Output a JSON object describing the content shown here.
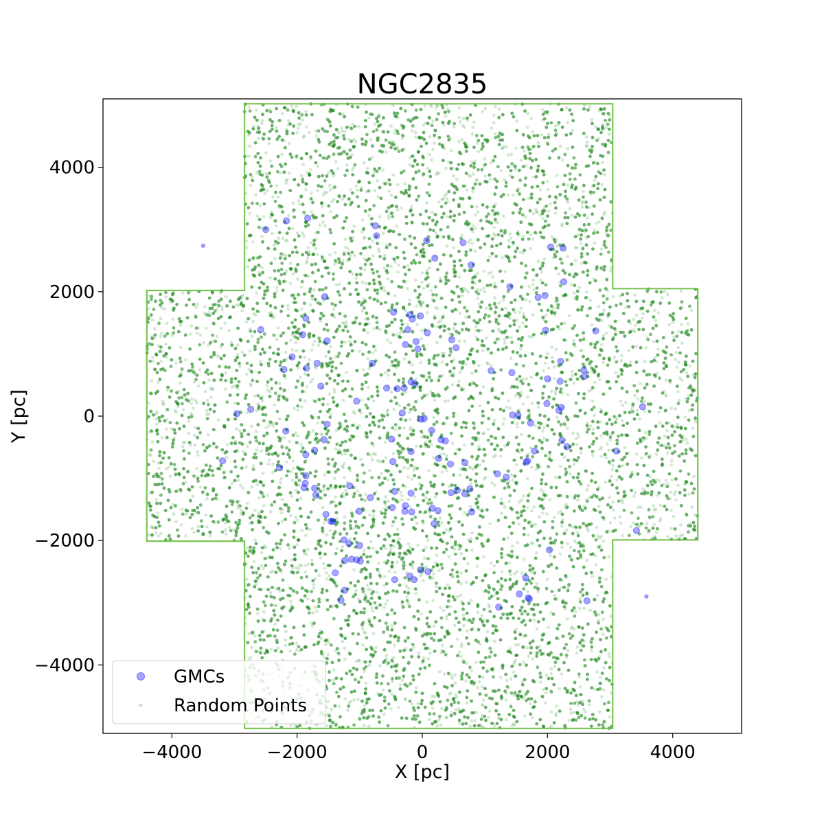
{
  "chart_data": {
    "type": "scatter",
    "title": "NGC2835",
    "xlabel": "X [pc]",
    "ylabel": "Y [pc]",
    "xlim": [
      -5100,
      5100
    ],
    "ylim": [
      -5100,
      5100
    ],
    "xticks": [
      -4000,
      -2000,
      0,
      2000,
      4000
    ],
    "yticks": [
      -4000,
      -2000,
      0,
      2000,
      4000
    ],
    "xtick_labels": [
      "−4000",
      "−2000",
      "0",
      "2000",
      "4000"
    ],
    "ytick_labels": [
      "−4000",
      "−2000",
      "0",
      "2000",
      "4000"
    ],
    "grid": false,
    "legend_position": "lower-left",
    "colors": {
      "gmc": "#0000ff",
      "random": "#228b22",
      "edge": "#6abf40"
    },
    "random_region": {
      "description_polygon": [
        [
          -2840,
          5020
        ],
        [
          3040,
          5020
        ],
        [
          3040,
          2050
        ],
        [
          4400,
          2050
        ],
        [
          4400,
          -1990
        ],
        [
          3040,
          -1990
        ],
        [
          3040,
          -5020
        ],
        [
          -2840,
          -5020
        ],
        [
          -2840,
          -2010
        ],
        [
          -4400,
          -2010
        ],
        [
          -4400,
          2020
        ],
        [
          -2840,
          2020
        ]
      ],
      "approx_point_count": 22000
    },
    "series": [
      {
        "name": "GMCs",
        "marker": "circle",
        "points": [
          [
            -3500,
            2740
          ],
          [
            -2500,
            3000
          ],
          [
            -2170,
            3140
          ],
          [
            -1830,
            3180
          ],
          [
            -750,
            3060
          ],
          [
            -730,
            2900
          ],
          [
            70,
            2820
          ],
          [
            650,
            2790
          ],
          [
            780,
            2430
          ],
          [
            200,
            2540
          ],
          [
            1400,
            2080
          ],
          [
            2050,
            2720
          ],
          [
            2250,
            2700
          ],
          [
            2260,
            2160
          ],
          [
            1850,
            1910
          ],
          [
            1960,
            1940
          ],
          [
            2770,
            1370
          ],
          [
            1970,
            1380
          ],
          [
            2210,
            880
          ],
          [
            2580,
            740
          ],
          [
            2590,
            640
          ],
          [
            2000,
            600
          ],
          [
            2200,
            560
          ],
          [
            1100,
            730
          ],
          [
            1430,
            700
          ],
          [
            3520,
            150
          ],
          [
            1990,
            200
          ],
          [
            2180,
            90
          ],
          [
            2220,
            140
          ],
          [
            1440,
            20
          ],
          [
            1530,
            10
          ],
          [
            1730,
            -110
          ],
          [
            2230,
            -390
          ],
          [
            2310,
            -490
          ],
          [
            3100,
            -560
          ],
          [
            1790,
            -560
          ],
          [
            1680,
            -720
          ],
          [
            1660,
            -740
          ],
          [
            1200,
            -930
          ],
          [
            1340,
            -980
          ],
          [
            790,
            -1540
          ],
          [
            680,
            -1250
          ],
          [
            760,
            -1170
          ],
          [
            560,
            -1190
          ],
          [
            460,
            -1230
          ],
          [
            680,
            -750
          ],
          [
            450,
            -770
          ],
          [
            300,
            -380
          ],
          [
            370,
            -400
          ],
          [
            150,
            -230
          ],
          [
            30,
            -40
          ],
          [
            -20,
            -50
          ],
          [
            -320,
            50
          ],
          [
            -490,
            -370
          ],
          [
            -470,
            -730
          ],
          [
            -180,
            -570
          ],
          [
            -440,
            -1210
          ],
          [
            -270,
            -1440
          ],
          [
            -280,
            -1530
          ],
          [
            -480,
            -1470
          ],
          [
            -180,
            -1240
          ],
          [
            -170,
            -1540
          ],
          [
            160,
            -1480
          ],
          [
            250,
            -1520
          ],
          [
            190,
            -1730
          ],
          [
            260,
            -680
          ],
          [
            -1050,
            240
          ],
          [
            -570,
            450
          ],
          [
            -400,
            440
          ],
          [
            -290,
            450
          ],
          [
            -180,
            550
          ],
          [
            -120,
            520
          ],
          [
            -270,
            1150
          ],
          [
            -230,
            1390
          ],
          [
            -200,
            1630
          ],
          [
            -160,
            1560
          ],
          [
            -100,
            1200
          ],
          [
            -70,
            1080
          ],
          [
            -30,
            1610
          ],
          [
            -460,
            1670
          ],
          [
            80,
            1340
          ],
          [
            470,
            1230
          ],
          [
            540,
            1100
          ],
          [
            -800,
            850
          ],
          [
            -1560,
            1920
          ],
          [
            -1860,
            1570
          ],
          [
            -1910,
            1310
          ],
          [
            -1520,
            1210
          ],
          [
            -1680,
            850
          ],
          [
            -1850,
            770
          ],
          [
            -2580,
            1390
          ],
          [
            -2080,
            950
          ],
          [
            -2210,
            750
          ],
          [
            -1620,
            480
          ],
          [
            -1520,
            -130
          ],
          [
            -1570,
            -380
          ],
          [
            -1720,
            -550
          ],
          [
            -1860,
            -620
          ],
          [
            -2740,
            110
          ],
          [
            -2960,
            40
          ],
          [
            -2180,
            -240
          ],
          [
            -3190,
            -720
          ],
          [
            -2280,
            -830
          ],
          [
            -1860,
            -960
          ],
          [
            -1870,
            -1080
          ],
          [
            -1890,
            -1150
          ],
          [
            -1720,
            -1160
          ],
          [
            -1700,
            -1270
          ],
          [
            -1540,
            -1580
          ],
          [
            -1460,
            -1690
          ],
          [
            -1430,
            -1690
          ],
          [
            -1160,
            -1120
          ],
          [
            -1010,
            -1530
          ],
          [
            -830,
            -1310
          ],
          [
            -1250,
            -1990
          ],
          [
            -1170,
            -2050
          ],
          [
            -1000,
            -2080
          ],
          [
            -1130,
            -2300
          ],
          [
            -1240,
            -2320
          ],
          [
            -1050,
            -2310
          ],
          [
            -990,
            -2330
          ],
          [
            -1390,
            -2520
          ],
          [
            -1240,
            -2800
          ],
          [
            -1300,
            -2960
          ],
          [
            -440,
            -2630
          ],
          [
            -200,
            -2570
          ],
          [
            -130,
            -2630
          ],
          [
            -30,
            -2470
          ],
          [
            90,
            -2500
          ],
          [
            1220,
            -3070
          ],
          [
            1550,
            -2860
          ],
          [
            1650,
            -2600
          ],
          [
            1690,
            -2920
          ],
          [
            1710,
            -2940
          ],
          [
            2030,
            -2150
          ],
          [
            2630,
            -2970
          ],
          [
            3420,
            -1840
          ],
          [
            3580,
            -2900
          ]
        ],
        "sizes": [
          1,
          2,
          2,
          2,
          2,
          2,
          2,
          2,
          2,
          2,
          2,
          2,
          2,
          2,
          2,
          2,
          2,
          2,
          2,
          2,
          2,
          2,
          2,
          2,
          2,
          2,
          2,
          2,
          2,
          2,
          2,
          2,
          2,
          2,
          2,
          2,
          2,
          2,
          2,
          2,
          2,
          2,
          2,
          2,
          2,
          2,
          2,
          2,
          2,
          2,
          2,
          2,
          2,
          2,
          2,
          2,
          2,
          2,
          2,
          2,
          2,
          2,
          2,
          2,
          2,
          2,
          2,
          2,
          2,
          2,
          2,
          2,
          2,
          2,
          2,
          2,
          2,
          2,
          2,
          2,
          2,
          2,
          2,
          2,
          2,
          2,
          2,
          2,
          2,
          2,
          2,
          2,
          2,
          2,
          2,
          2,
          2,
          2,
          2,
          2,
          2,
          2,
          2,
          2,
          2,
          2,
          2,
          2,
          2,
          2,
          2,
          2,
          2,
          2,
          2,
          2,
          2,
          2,
          2,
          2,
          2,
          2,
          2,
          2,
          2,
          2,
          2,
          2,
          2,
          2,
          2,
          2,
          2,
          2,
          2,
          2,
          2,
          1
        ]
      },
      {
        "name": "Random Points",
        "marker": "point",
        "distribution": "uniform within random_region"
      }
    ]
  }
}
